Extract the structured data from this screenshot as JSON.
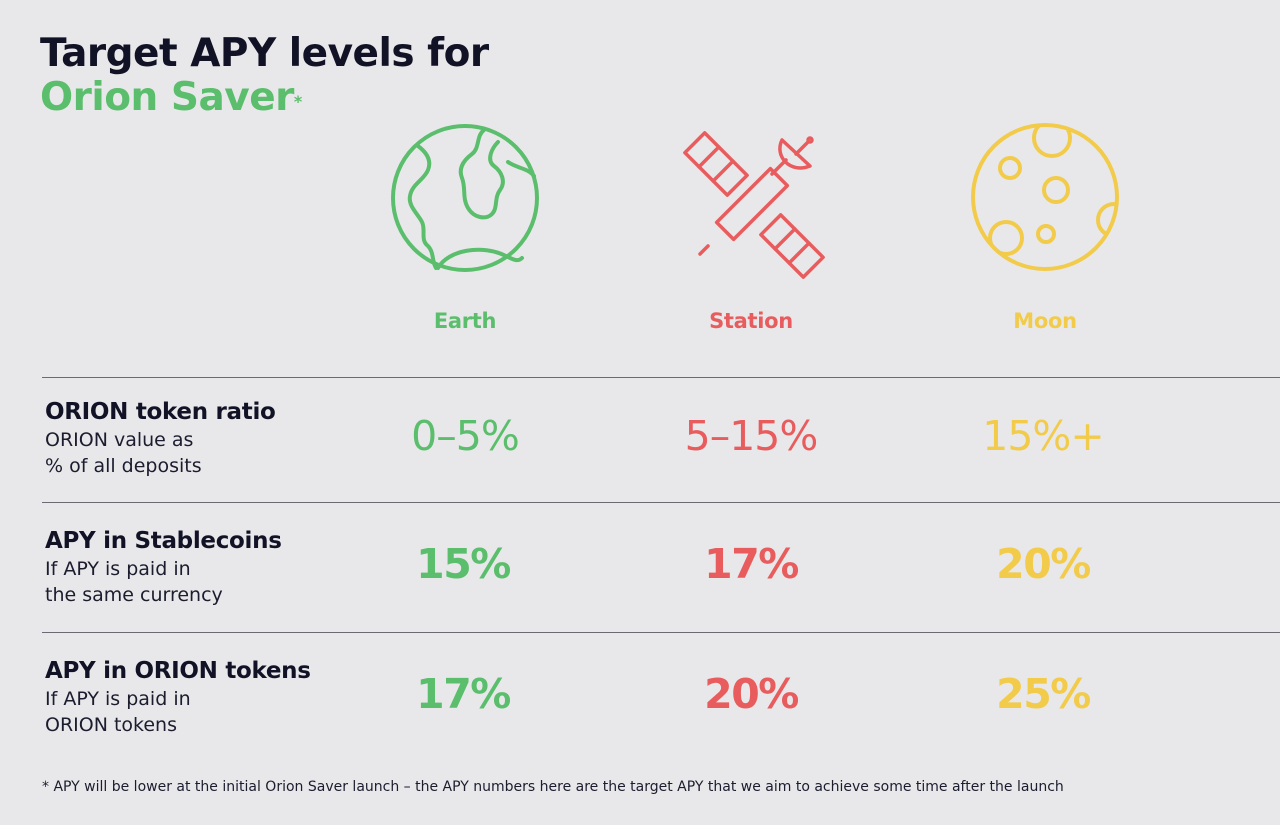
{
  "title": {
    "line1": "Target APY levels for",
    "line2": "Orion Saver",
    "asterisk": "*"
  },
  "levels": [
    {
      "name": "Earth",
      "icon": "earth-icon",
      "color": "#5bbe6c"
    },
    {
      "name": "Station",
      "icon": "satellite-icon",
      "color": "#e85c5e"
    },
    {
      "name": "Moon",
      "icon": "moon-icon",
      "color": "#f2cb4b"
    }
  ],
  "rows": [
    {
      "heading": "ORION token ratio",
      "sub1": "ORION value as",
      "sub2": "% of all deposits",
      "values": [
        "0–5%",
        "5–15%",
        "15%+"
      ]
    },
    {
      "heading": "APY in Stablecoins",
      "sub1": "If APY is paid in",
      "sub2": "the same currency",
      "values": [
        "15%",
        "17%",
        "20%"
      ]
    },
    {
      "heading": "APY in ORION tokens",
      "sub1": "If APY is paid in",
      "sub2": "ORION tokens",
      "values": [
        "17%",
        "20%",
        "25%"
      ]
    }
  ],
  "footnote": "* APY will be lower at the initial Orion Saver launch – the APY numbers here are the target APY that we aim to achieve some time after the launch"
}
